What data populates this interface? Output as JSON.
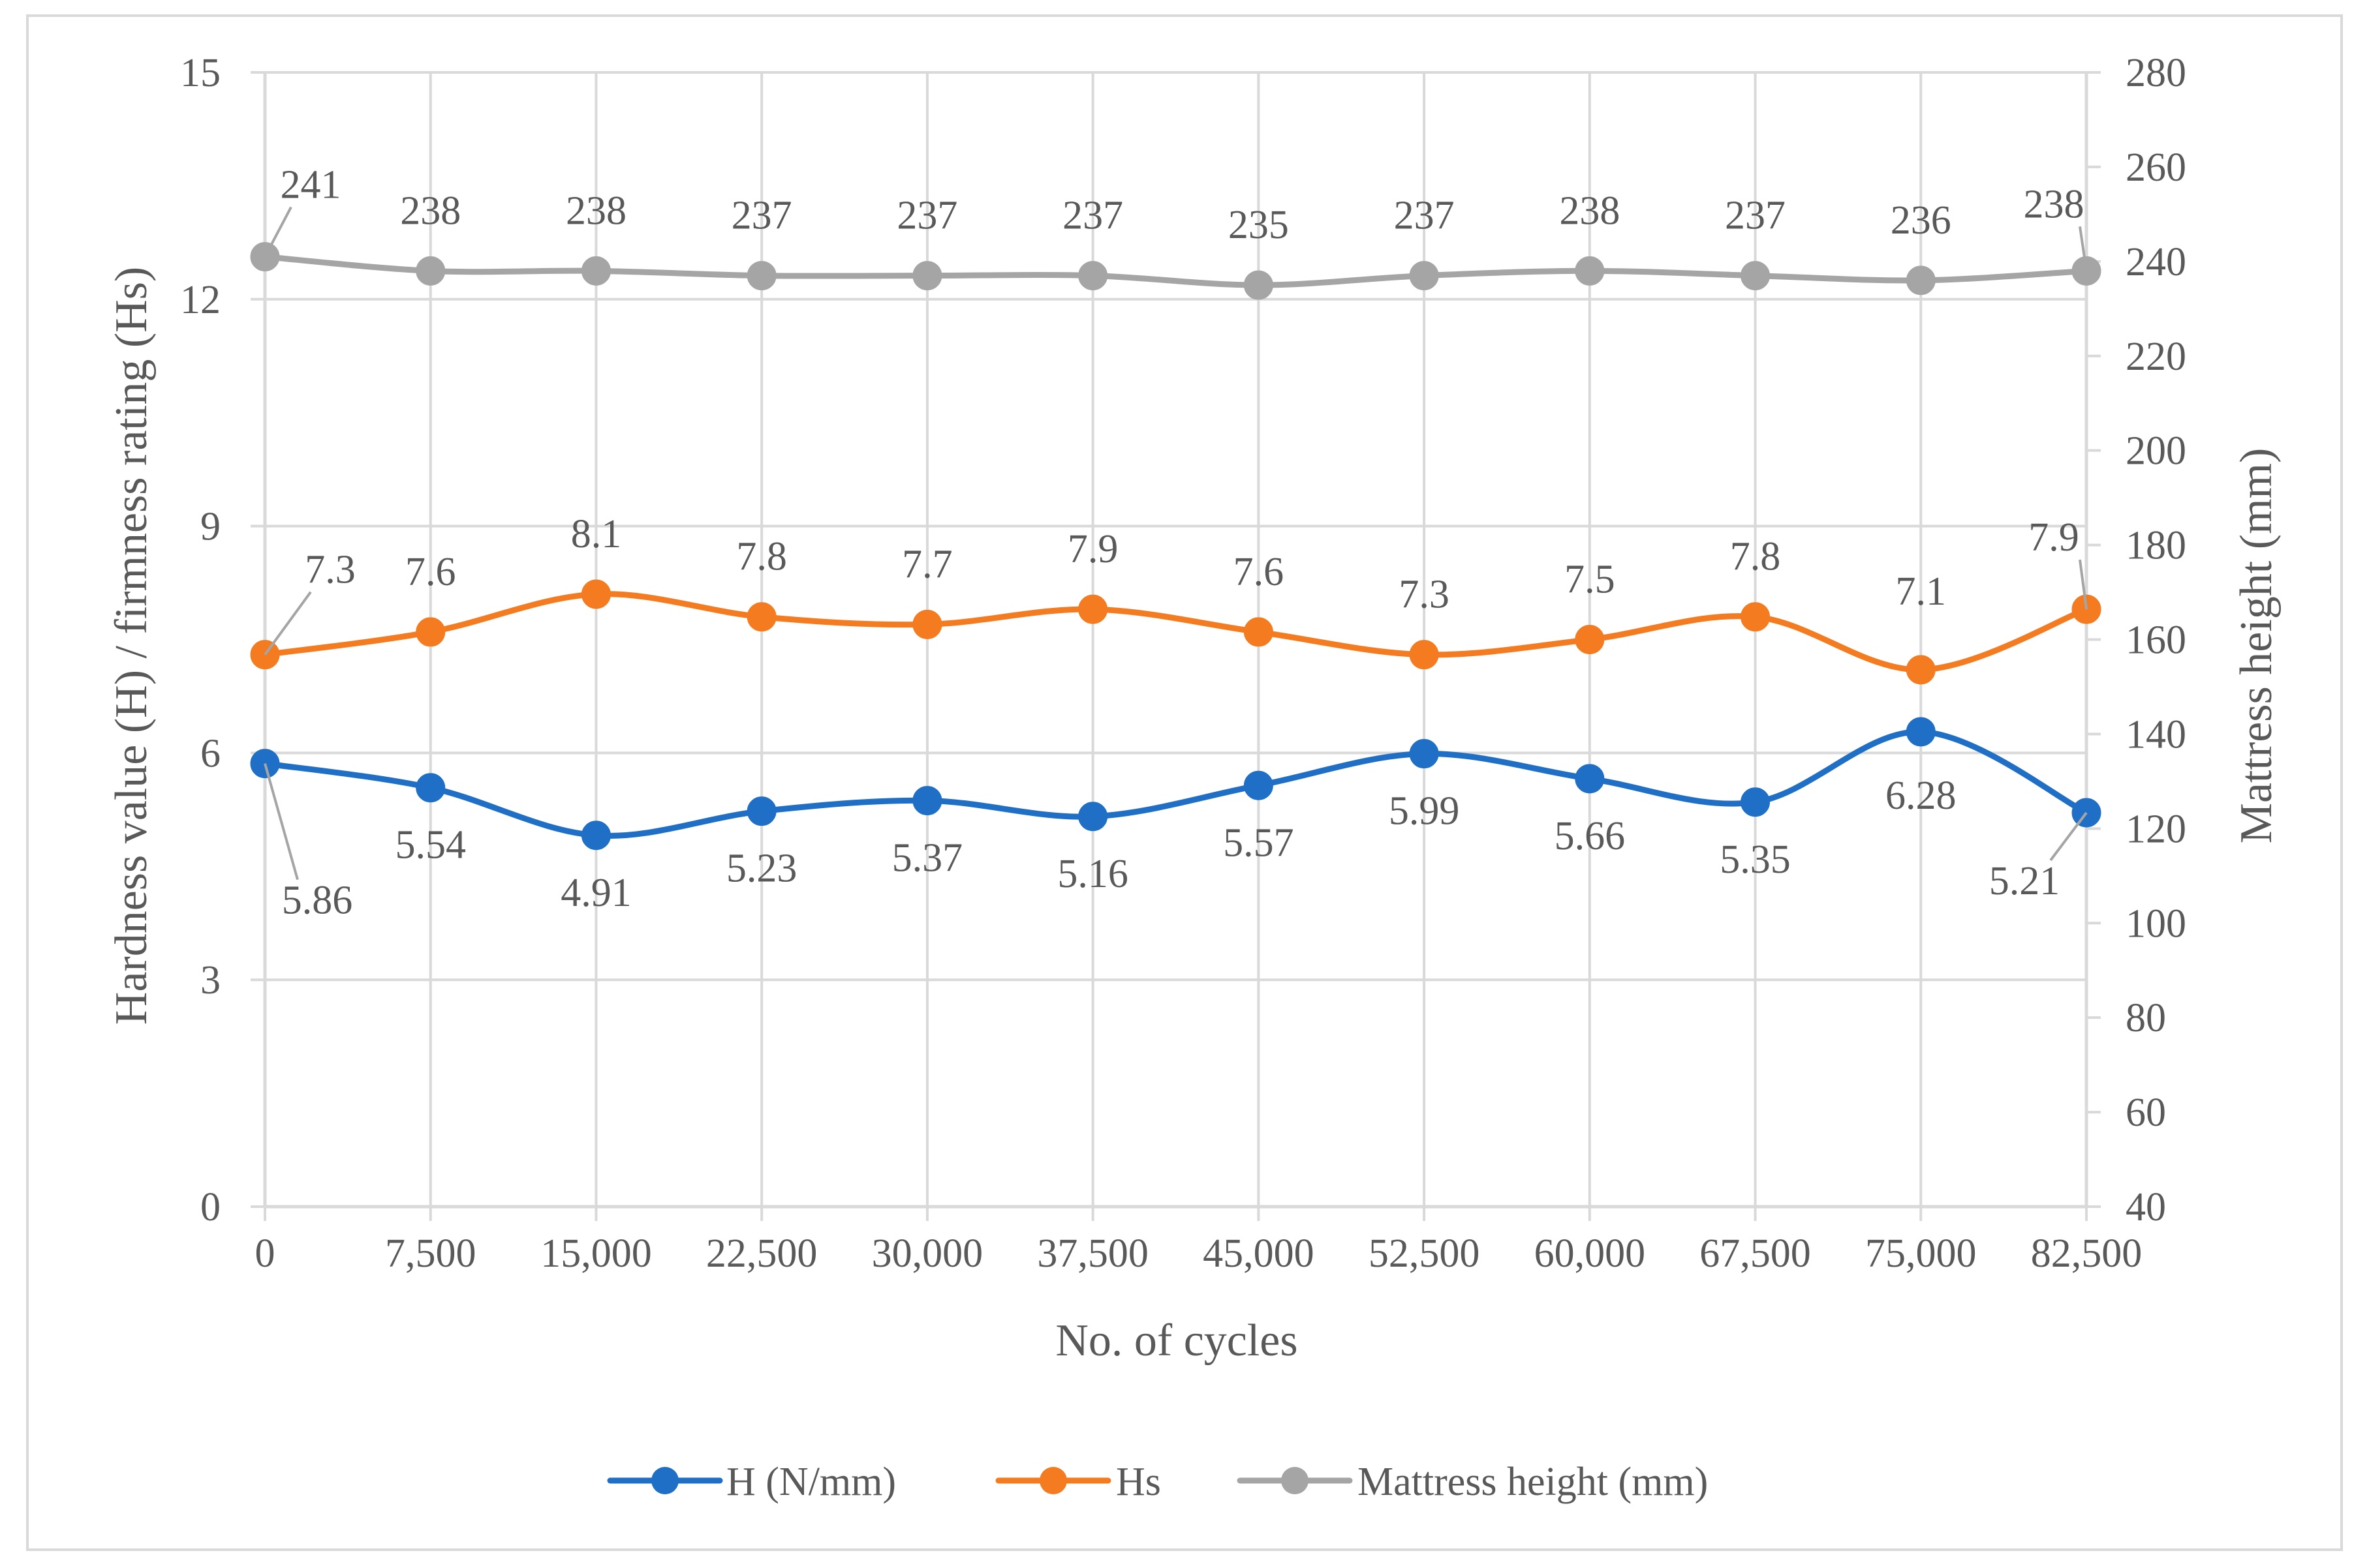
{
  "chart_data": {
    "type": "line",
    "title": "",
    "xlabel": "No. of cycles",
    "ylabel_left": "Hardness value (H) / firmness rating (Hs)",
    "ylabel_right": "Mattress height (mm)",
    "x": [
      "0",
      "7,500",
      "15,000",
      "22,500",
      "30,000",
      "37,500",
      "45,000",
      "52,500",
      "60,000",
      "67,500",
      "75,000",
      "82,500"
    ],
    "yleft_lim": [
      0,
      15
    ],
    "yleft_ticks": [
      "0",
      "3",
      "6",
      "9",
      "12",
      "15"
    ],
    "yright_lim": [
      40,
      280
    ],
    "yright_ticks": [
      "40",
      "60",
      "80",
      "100",
      "120",
      "140",
      "160",
      "180",
      "200",
      "220",
      "240",
      "260",
      "280"
    ],
    "grid": true,
    "legend_position": "bottom",
    "series": [
      {
        "name": "H (N/mm)",
        "axis": "left",
        "color": "#1f6fc6",
        "values": [
          5.86,
          5.54,
          4.91,
          5.23,
          5.37,
          5.16,
          5.57,
          5.99,
          5.66,
          5.35,
          6.28,
          5.21
        ],
        "labels": [
          "5.86",
          "5.54",
          "4.91",
          "5.23",
          "5.37",
          "5.16",
          "5.57",
          "5.99",
          "5.66",
          "5.35",
          "6.28",
          "5.21"
        ]
      },
      {
        "name": "Hs",
        "axis": "left",
        "color": "#f47b20",
        "values": [
          7.3,
          7.6,
          8.1,
          7.8,
          7.7,
          7.9,
          7.6,
          7.3,
          7.5,
          7.8,
          7.1,
          7.9
        ],
        "labels": [
          "7.3",
          "7.6",
          "8.1",
          "7.8",
          "7.7",
          "7.9",
          "7.6",
          "7.3",
          "7.5",
          "7.8",
          "7.1",
          "7.9"
        ]
      },
      {
        "name": "Mattress height (mm)",
        "axis": "right",
        "color": "#a5a5a5",
        "values": [
          241,
          238,
          238,
          237,
          237,
          237,
          235,
          237,
          238,
          237,
          236,
          238
        ],
        "labels": [
          "241",
          "238",
          "238",
          "237",
          "237",
          "237",
          "235",
          "237",
          "238",
          "237",
          "236",
          "238"
        ]
      }
    ]
  }
}
